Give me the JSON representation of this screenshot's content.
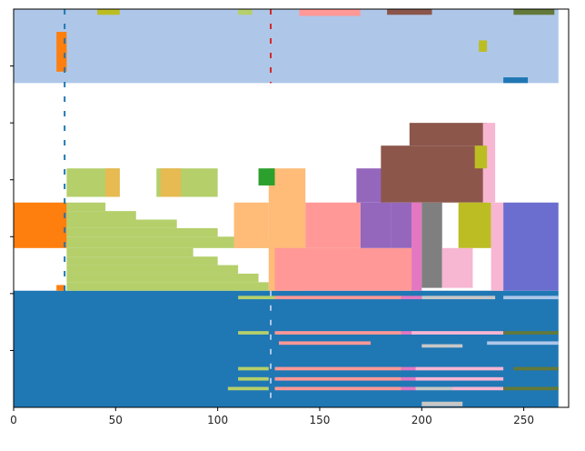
{
  "chart_data": {
    "type": "heatmap",
    "xlim": [
      0,
      272
    ],
    "ylim": [
      0,
      7
    ],
    "x_ticks": [
      0,
      50,
      100,
      150,
      200,
      250
    ],
    "x_tick_labels": [
      "0",
      "50",
      "100",
      "150",
      "200",
      "250"
    ],
    "y_ticks": [
      1,
      2,
      3,
      4,
      5,
      6
    ],
    "y_tick_labels": [
      "",
      "",
      "",
      "",
      "",
      ""
    ],
    "background": "#ffffff",
    "palette": {
      "blue": "#1f77b4",
      "light_blue": "#aec7e8",
      "orange": "#ff7f0e",
      "light_orange": "#ffbb78",
      "green": "#2ca02c",
      "pink": "#ff9896",
      "purple": "#9467bd",
      "brown": "#8c564b",
      "magenta": "#e377c2",
      "light_pink": "#f7b6d2",
      "gray": "#7f7f7f",
      "light_gray": "#c7c7c7",
      "olive": "#bcbd22",
      "light_olive": "#b5cf6b",
      "dark_olive": "#637939",
      "indigo": "#6b6ecf",
      "gold": "#e7ba52",
      "red": "#d62728"
    },
    "blocks": [
      {
        "x0": 0,
        "x1": 267,
        "y0": 0,
        "y1": 2.05,
        "color": "blue"
      },
      {
        "x0": 0,
        "x1": 267,
        "y0": 5.7,
        "y1": 7,
        "color": "light_blue"
      },
      {
        "x0": 0,
        "x1": 26,
        "y0": 2.8,
        "y1": 3.6,
        "color": "orange"
      },
      {
        "x0": 21,
        "x1": 26,
        "y0": 5.9,
        "y1": 6.6,
        "color": "orange"
      },
      {
        "x0": 21,
        "x1": 25,
        "y0": 2.05,
        "y1": 2.15,
        "color": "orange"
      },
      {
        "x0": 26,
        "x1": 125,
        "y0": 2.05,
        "y1": 2.2,
        "color": "light_olive"
      },
      {
        "x0": 26,
        "x1": 120,
        "y0": 2.2,
        "y1": 2.35,
        "color": "light_olive"
      },
      {
        "x0": 26,
        "x1": 110,
        "y0": 2.35,
        "y1": 2.5,
        "color": "light_olive"
      },
      {
        "x0": 26,
        "x1": 100,
        "y0": 2.5,
        "y1": 2.65,
        "color": "light_olive"
      },
      {
        "x0": 26,
        "x1": 88,
        "y0": 2.65,
        "y1": 2.8,
        "color": "light_olive"
      },
      {
        "x0": 26,
        "x1": 125,
        "y0": 2.8,
        "y1": 3.0,
        "color": "light_olive"
      },
      {
        "x0": 26,
        "x1": 100,
        "y0": 3.0,
        "y1": 3.15,
        "color": "light_olive"
      },
      {
        "x0": 26,
        "x1": 80,
        "y0": 3.15,
        "y1": 3.3,
        "color": "light_olive"
      },
      {
        "x0": 26,
        "x1": 60,
        "y0": 3.3,
        "y1": 3.45,
        "color": "light_olive"
      },
      {
        "x0": 26,
        "x1": 45,
        "y0": 3.45,
        "y1": 3.6,
        "color": "light_olive"
      },
      {
        "x0": 26,
        "x1": 52,
        "y0": 3.7,
        "y1": 4.2,
        "color": "light_olive"
      },
      {
        "x0": 70,
        "x1": 100,
        "y0": 3.7,
        "y1": 4.2,
        "color": "light_olive"
      },
      {
        "x0": 45,
        "x1": 52,
        "y0": 3.7,
        "y1": 4.2,
        "color": "gold"
      },
      {
        "x0": 72,
        "x1": 82,
        "y0": 3.7,
        "y1": 4.2,
        "color": "gold"
      },
      {
        "x0": 125,
        "x1": 143,
        "y0": 2.05,
        "y1": 4.2,
        "color": "light_orange"
      },
      {
        "x0": 108,
        "x1": 125,
        "y0": 2.8,
        "y1": 3.6,
        "color": "light_orange"
      },
      {
        "x0": 120,
        "x1": 128,
        "y0": 3.9,
        "y1": 4.2,
        "color": "green"
      },
      {
        "x0": 128,
        "x1": 195,
        "y0": 2.05,
        "y1": 2.8,
        "color": "pink"
      },
      {
        "x0": 143,
        "x1": 170,
        "y0": 2.8,
        "y1": 3.6,
        "color": "pink"
      },
      {
        "x0": 170,
        "x1": 185,
        "y0": 2.8,
        "y1": 3.6,
        "color": "purple"
      },
      {
        "x0": 168,
        "x1": 182,
        "y0": 3.6,
        "y1": 4.2,
        "color": "purple"
      },
      {
        "x0": 180,
        "x1": 232,
        "y0": 3.6,
        "y1": 4.6,
        "color": "brown"
      },
      {
        "x0": 194,
        "x1": 232,
        "y0": 4.6,
        "y1": 5.0,
        "color": "brown"
      },
      {
        "x0": 185,
        "x1": 195,
        "y0": 2.8,
        "y1": 3.6,
        "color": "purple"
      },
      {
        "x0": 195,
        "x1": 200,
        "y0": 2.05,
        "y1": 3.6,
        "color": "magenta"
      },
      {
        "x0": 200,
        "x1": 210,
        "y0": 2.1,
        "y1": 3.6,
        "color": "gray"
      },
      {
        "x0": 210,
        "x1": 225,
        "y0": 2.1,
        "y1": 2.8,
        "color": "light_pink"
      },
      {
        "x0": 218,
        "x1": 234,
        "y0": 2.8,
        "y1": 3.6,
        "color": "olive"
      },
      {
        "x0": 234,
        "x1": 240,
        "y0": 2.05,
        "y1": 3.6,
        "color": "light_pink"
      },
      {
        "x0": 240,
        "x1": 267,
        "y0": 2.05,
        "y1": 3.6,
        "color": "indigo"
      },
      {
        "x0": 230,
        "x1": 236,
        "y0": 3.6,
        "y1": 5.0,
        "color": "light_pink"
      },
      {
        "x0": 226,
        "x1": 232,
        "y0": 4.2,
        "y1": 4.6,
        "color": "olive"
      },
      {
        "x0": 110,
        "x1": 128,
        "y0": 1.9,
        "y1": 1.96,
        "color": "light_olive"
      },
      {
        "x0": 128,
        "x1": 190,
        "y0": 1.9,
        "y1": 1.96,
        "color": "pink"
      },
      {
        "x0": 190,
        "x1": 200,
        "y0": 1.9,
        "y1": 1.96,
        "color": "magenta"
      },
      {
        "x0": 200,
        "x1": 236,
        "y0": 1.9,
        "y1": 1.96,
        "color": "light_gray"
      },
      {
        "x0": 240,
        "x1": 267,
        "y0": 1.9,
        "y1": 1.96,
        "color": "light_blue"
      },
      {
        "x0": 110,
        "x1": 125,
        "y0": 1.28,
        "y1": 1.34,
        "color": "light_olive"
      },
      {
        "x0": 128,
        "x1": 190,
        "y0": 1.28,
        "y1": 1.34,
        "color": "pink"
      },
      {
        "x0": 190,
        "x1": 195,
        "y0": 1.28,
        "y1": 1.34,
        "color": "magenta"
      },
      {
        "x0": 195,
        "x1": 240,
        "y0": 1.28,
        "y1": 1.34,
        "color": "light_pink"
      },
      {
        "x0": 240,
        "x1": 267,
        "y0": 1.28,
        "y1": 1.34,
        "color": "dark_olive"
      },
      {
        "x0": 130,
        "x1": 175,
        "y0": 1.1,
        "y1": 1.16,
        "color": "pink"
      },
      {
        "x0": 200,
        "x1": 220,
        "y0": 1.05,
        "y1": 1.11,
        "color": "light_gray"
      },
      {
        "x0": 232,
        "x1": 267,
        "y0": 1.1,
        "y1": 1.16,
        "color": "light_blue"
      },
      {
        "x0": 110,
        "x1": 125,
        "y0": 0.65,
        "y1": 0.71,
        "color": "light_olive"
      },
      {
        "x0": 128,
        "x1": 190,
        "y0": 0.65,
        "y1": 0.71,
        "color": "pink"
      },
      {
        "x0": 190,
        "x1": 197,
        "y0": 0.65,
        "y1": 0.71,
        "color": "magenta"
      },
      {
        "x0": 197,
        "x1": 240,
        "y0": 0.65,
        "y1": 0.71,
        "color": "light_pink"
      },
      {
        "x0": 245,
        "x1": 267,
        "y0": 0.65,
        "y1": 0.71,
        "color": "dark_olive"
      },
      {
        "x0": 110,
        "x1": 125,
        "y0": 0.47,
        "y1": 0.53,
        "color": "light_olive"
      },
      {
        "x0": 128,
        "x1": 190,
        "y0": 0.47,
        "y1": 0.53,
        "color": "pink"
      },
      {
        "x0": 190,
        "x1": 197,
        "y0": 0.47,
        "y1": 0.53,
        "color": "magenta"
      },
      {
        "x0": 197,
        "x1": 240,
        "y0": 0.47,
        "y1": 0.53,
        "color": "light_pink"
      },
      {
        "x0": 105,
        "x1": 125,
        "y0": 0.3,
        "y1": 0.36,
        "color": "light_olive"
      },
      {
        "x0": 128,
        "x1": 190,
        "y0": 0.3,
        "y1": 0.36,
        "color": "pink"
      },
      {
        "x0": 190,
        "x1": 197,
        "y0": 0.3,
        "y1": 0.36,
        "color": "magenta"
      },
      {
        "x0": 197,
        "x1": 215,
        "y0": 0.3,
        "y1": 0.36,
        "color": "light_gray"
      },
      {
        "x0": 215,
        "x1": 240,
        "y0": 0.3,
        "y1": 0.36,
        "color": "light_pink"
      },
      {
        "x0": 240,
        "x1": 267,
        "y0": 0.3,
        "y1": 0.36,
        "color": "dark_olive"
      },
      {
        "x0": 200,
        "x1": 220,
        "y0": 0.02,
        "y1": 0.1,
        "color": "light_gray"
      },
      {
        "x0": 140,
        "x1": 170,
        "y0": 6.88,
        "y1": 7,
        "color": "pink"
      },
      {
        "x0": 183,
        "x1": 205,
        "y0": 6.9,
        "y1": 7,
        "color": "brown"
      },
      {
        "x0": 245,
        "x1": 265,
        "y0": 6.9,
        "y1": 7,
        "color": "dark_olive"
      },
      {
        "x0": 110,
        "x1": 117,
        "y0": 6.9,
        "y1": 7,
        "color": "light_olive"
      },
      {
        "x0": 41,
        "x1": 52,
        "y0": 6.9,
        "y1": 7,
        "color": "olive"
      },
      {
        "x0": 228,
        "x1": 232,
        "y0": 6.25,
        "y1": 6.45,
        "color": "olive"
      },
      {
        "x0": 240,
        "x1": 252,
        "y0": 5.7,
        "y1": 5.8,
        "color": "blue"
      }
    ],
    "vlines": [
      {
        "x": 25,
        "y0": 0,
        "y1": 7,
        "color": "blue"
      },
      {
        "x": 126,
        "y0": 5.7,
        "y1": 7,
        "color": "red"
      },
      {
        "x": 126,
        "y0": 0,
        "y1": 2.05,
        "color": "light_blue"
      }
    ]
  }
}
